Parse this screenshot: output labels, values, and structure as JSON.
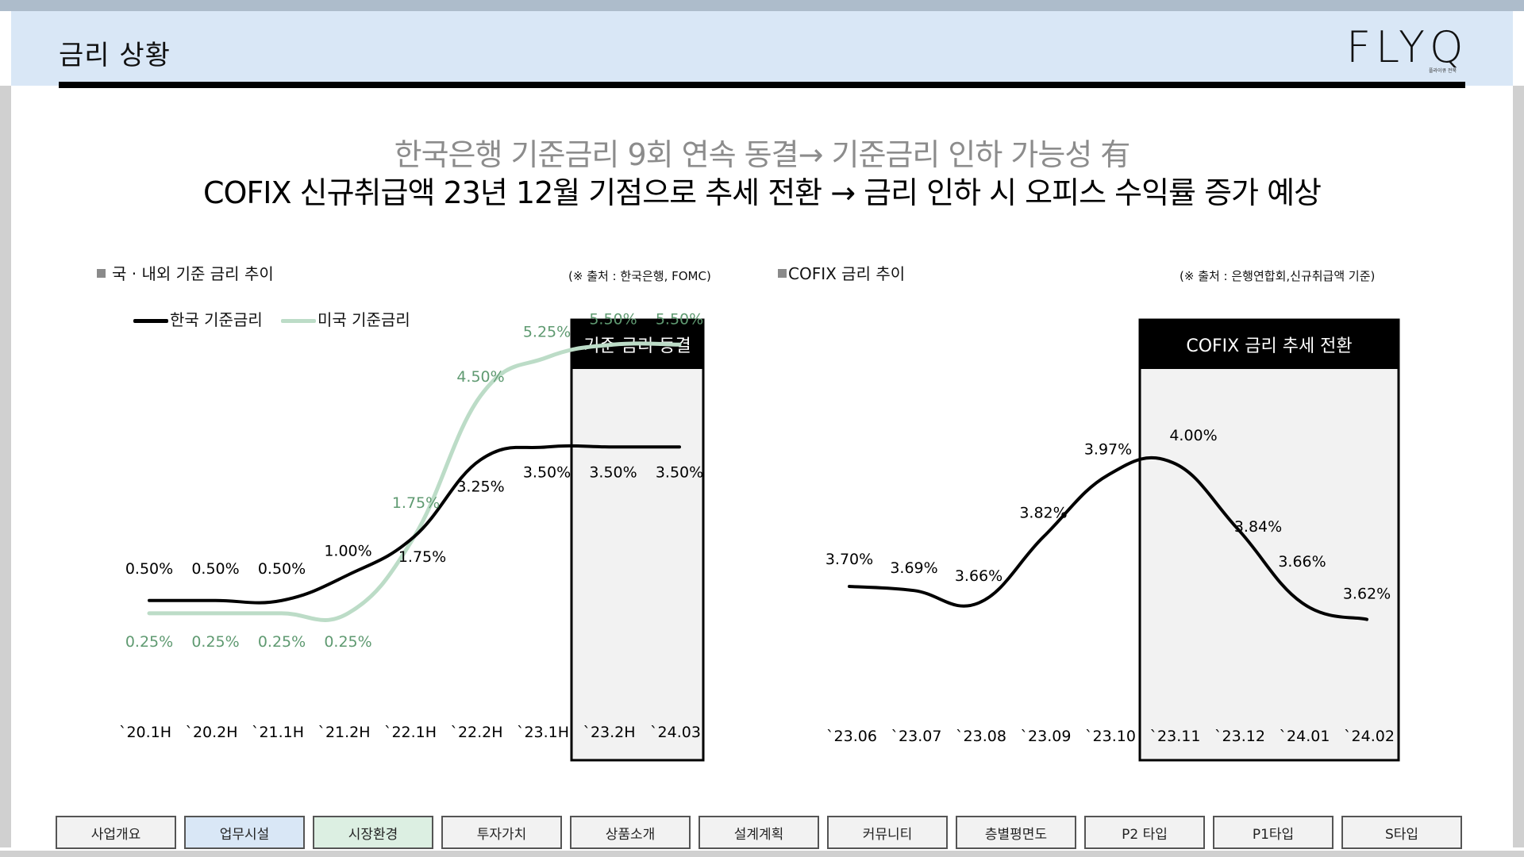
{
  "page": {
    "title": "금리 상황",
    "logo": "FLYQ",
    "logo_sub": "플라이큐 전북"
  },
  "headline": {
    "line1": "한국은행 기준금리 9회 연속 동결→ 기준금리 인하 가능성 有",
    "line2": "COFIX 신규취급액 23년 12월 기점으로 추세 전환  → 금리 인하 시 오피스 수익률 증가 예상"
  },
  "colors": {
    "korea": "#000000",
    "us": "#bcdcc7",
    "us_label": "#5f9a71",
    "header_band": "#d9e7f6"
  },
  "chart_data": [
    {
      "type": "line",
      "title": "국 · 내외 기준 금리 추이",
      "source": "(※ 출처 : 한국은행, FOMC)",
      "categories": [
        "`20.1H",
        "`20.2H",
        "`21.1H",
        "`21.2H",
        "`22.1H",
        "`22.2H",
        "`23.1H",
        "`23.2H",
        "`24.03"
      ],
      "series": [
        {
          "name": "한국 기준금리",
          "values": [
            0.5,
            0.5,
            0.5,
            1.0,
            1.75,
            3.25,
            3.5,
            3.5,
            3.5
          ],
          "labels": [
            "0.50%",
            "0.50%",
            "0.50%",
            "1.00%",
            "1.75%",
            "3.25%",
            "3.50%",
            "3.50%",
            "3.50%"
          ]
        },
        {
          "name": "미국 기준금리",
          "values": [
            0.25,
            0.25,
            0.25,
            0.25,
            1.75,
            4.5,
            5.25,
            5.5,
            5.5
          ],
          "labels": [
            "0.25%",
            "0.25%",
            "0.25%",
            "0.25%",
            "1.75%",
            "4.50%",
            "5.25%",
            "5.50%",
            "5.50%"
          ]
        }
      ],
      "legend": "top-left",
      "grid": false,
      "highlight": {
        "label": "기준 금리 동결",
        "categories": [
          "`23.2H",
          "`24.03"
        ]
      }
    },
    {
      "type": "line",
      "title": "COFIX 금리 추이",
      "source": "(※ 출처 : 은행연합회,신규취급액 기준)",
      "categories": [
        "`23.06",
        "`23.07",
        "`23.08",
        "`23.09",
        "`23.10",
        "`23.11",
        "`23.12",
        "`24.01",
        "`24.02"
      ],
      "series": [
        {
          "name": "",
          "values": [
            3.7,
            3.69,
            3.66,
            3.82,
            3.97,
            4.0,
            3.84,
            3.66,
            3.62
          ],
          "labels": [
            "3.70%",
            "3.69%",
            "3.66%",
            "3.82%",
            "3.97%",
            "4.00%",
            "3.84%",
            "3.66%",
            "3.62%"
          ]
        }
      ],
      "grid": false,
      "highlight": {
        "label": "COFIX 금리 추세 전환",
        "categories": [
          "`23.11",
          "`23.12",
          "`24.01",
          "`24.02"
        ]
      }
    }
  ],
  "nav": [
    "사업개요",
    "업무시설",
    "시장환경",
    "투자가치",
    "상품소개",
    "설계계획",
    "커뮤니티",
    "층별평면도",
    "P2 타입",
    "P1타입",
    "S타입"
  ]
}
